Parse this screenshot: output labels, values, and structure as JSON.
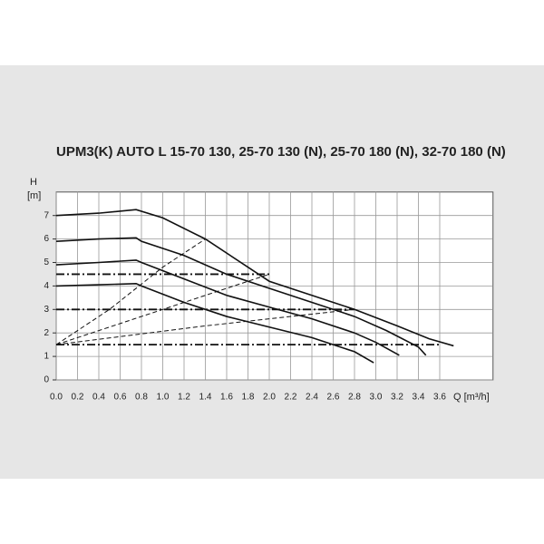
{
  "chart_data": {
    "type": "line",
    "title": "UPM3(K) AUTO L 15-70 130, 25-70 130 (N), 25-70 180 (N), 32-70 180 (N)",
    "y_label": "H",
    "y_unit": "[m]",
    "x_label": "Q [m³/h]",
    "xlim": [
      0,
      4.1
    ],
    "ylim": [
      0,
      8
    ],
    "xticks": [
      {
        "value": 0,
        "label": "0.0"
      },
      0.2,
      0.4,
      0.6,
      0.8,
      {
        "value": 1,
        "label": "1.0"
      },
      1.2,
      1.4,
      1.6,
      1.8,
      {
        "value": 2,
        "label": "2.0"
      },
      2.2,
      2.4,
      2.6,
      2.8,
      {
        "value": 3,
        "label": "3.0"
      },
      3.2,
      3.4,
      3.6
    ],
    "yticks": [
      0,
      1,
      2,
      3,
      4,
      5,
      6,
      7
    ],
    "grid": true,
    "series": [
      {
        "style": "solid",
        "color": "#111111",
        "x": [
          0,
          0.4,
          0.75,
          1.0,
          1.4,
          2.0,
          2.4,
          2.8,
          3.2,
          3.5,
          3.73
        ],
        "values": [
          7.0,
          7.1,
          7.25,
          6.9,
          6.0,
          4.2,
          3.6,
          3.0,
          2.3,
          1.75,
          1.45
        ]
      },
      {
        "style": "solid",
        "color": "#111111",
        "x": [
          0,
          0.4,
          0.75,
          0.8,
          1.2,
          1.6,
          2.0,
          2.4,
          2.8,
          3.1,
          3.4,
          3.47
        ],
        "values": [
          5.9,
          6.0,
          6.05,
          5.9,
          5.3,
          4.5,
          3.9,
          3.3,
          2.7,
          2.1,
          1.4,
          1.05
        ]
      },
      {
        "style": "solid",
        "color": "#111111",
        "x": [
          0,
          0.4,
          0.75,
          0.8,
          1.2,
          1.6,
          2.0,
          2.4,
          2.8,
          3.0,
          3.22
        ],
        "values": [
          4.9,
          5.0,
          5.1,
          5.0,
          4.3,
          3.6,
          3.1,
          2.6,
          2.0,
          1.6,
          1.05
        ]
      },
      {
        "style": "solid",
        "color": "#111111",
        "x": [
          0,
          0.4,
          0.75,
          0.8,
          1.2,
          1.6,
          2.0,
          2.4,
          2.8,
          2.98
        ],
        "values": [
          4.0,
          4.05,
          4.1,
          4.0,
          3.3,
          2.7,
          2.25,
          1.8,
          1.2,
          0.73
        ]
      },
      {
        "style": "dashed",
        "color": "#111111",
        "x": [
          0,
          0.5,
          1.0,
          1.4
        ],
        "values": [
          1.5,
          3.0,
          4.8,
          6.0
        ]
      },
      {
        "style": "dashed",
        "color": "#111111",
        "x": [
          0,
          1.0,
          2.0
        ],
        "values": [
          1.5,
          3.0,
          4.5
        ]
      },
      {
        "style": "dashed",
        "color": "#111111",
        "x": [
          0,
          1.4,
          2.8
        ],
        "values": [
          1.5,
          2.3,
          3.0
        ]
      },
      {
        "style": "dashdot",
        "color": "#111111",
        "x": [
          0,
          2.0
        ],
        "values": [
          4.5,
          4.5
        ]
      },
      {
        "style": "dashdot",
        "color": "#111111",
        "x": [
          0,
          2.8
        ],
        "values": [
          3.0,
          3.0
        ]
      },
      {
        "style": "dashdot",
        "color": "#111111",
        "x": [
          0,
          3.6
        ],
        "values": [
          1.5,
          1.5
        ]
      }
    ]
  }
}
